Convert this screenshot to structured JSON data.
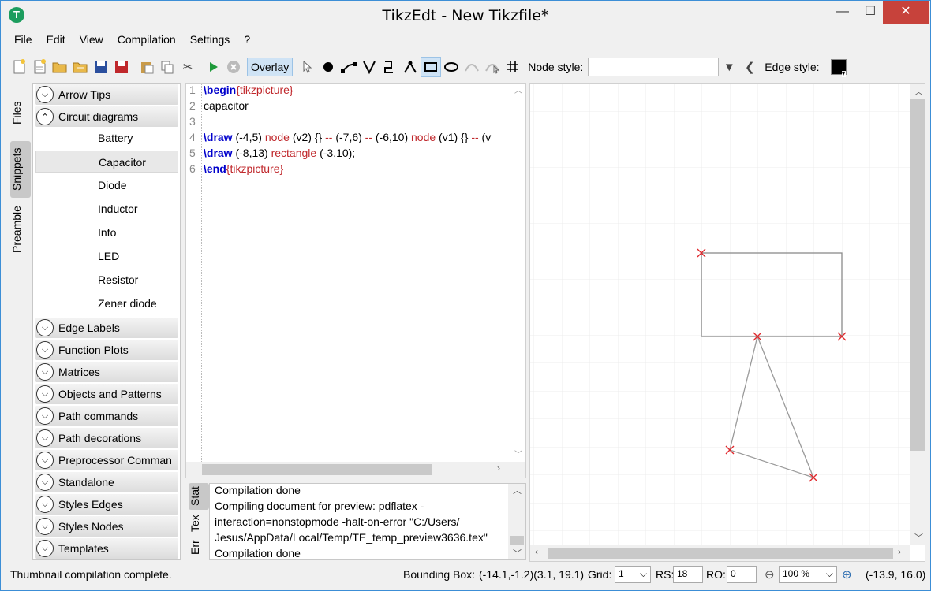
{
  "window": {
    "title": "TikzEdt - New Tikzfile*",
    "app_icon_letter": "T"
  },
  "menu": [
    "File",
    "Edit",
    "View",
    "Compilation",
    "Settings",
    "?"
  ],
  "toolbar": {
    "overlay_label": "Overlay",
    "node_style_label": "Node style:",
    "edge_style_label": "Edge style:",
    "edge_color": "#000000"
  },
  "side_tabs": [
    "Files",
    "Snippets",
    "Preamble"
  ],
  "snippets": {
    "categories_before": [
      "Arrow Tips",
      "Circuit diagrams"
    ],
    "circuit_items": [
      "Battery",
      "Capacitor",
      "Diode",
      "Inductor",
      "Info",
      "LED",
      "Resistor",
      "Zener diode"
    ],
    "categories_after": [
      "Edge Labels",
      "Function Plots",
      "Matrices",
      "Objects and Patterns",
      "Path commands",
      "Path decorations",
      "Preprocessor Comman",
      "Standalone",
      "Styles Edges",
      "Styles Nodes",
      "Templates"
    ],
    "selected": "Capacitor"
  },
  "editor": {
    "line_numbers": [
      "1",
      "2",
      "3",
      "4",
      "5",
      "6"
    ],
    "line1": {
      "kw": "\\begin",
      "arg": "{tikzpicture}"
    },
    "line2": "capacitor",
    "line4": {
      "kw": "\\draw",
      "t1": " (-4,5) ",
      "a1": "node",
      "t2": " (v2) {} ",
      "a2": "--",
      "t3": " (-7,6) ",
      "a3": "--",
      "t4": " (-6,10) ",
      "a4": "node",
      "t5": " (v1) {} ",
      "a5": "--",
      "t6": " (v"
    },
    "line5": {
      "kw": "\\draw",
      "t1": "  (-8,13) ",
      "a1": "rectangle",
      "t2": " (-3,10);"
    },
    "line6": {
      "kw": "\\end",
      "arg": "{tikzpicture}"
    }
  },
  "message_tabs": [
    "Stat",
    "Tex",
    "Err"
  ],
  "messages": [
    "Compilation done",
    "Compiling document for preview: pdflatex -",
    "interaction=nonstopmode -halt-on-error \"C:/Users/",
    "Jesus/AppData/Local/Temp/TE_temp_preview3636.tex\"",
    "Compilation done"
  ],
  "status": {
    "message": "Thumbnail compilation complete.",
    "bbox_label": "Bounding Box:",
    "bbox_value": "(-14.1,-1.2)(3.1, 19.1)",
    "grid_label": "Grid:",
    "grid_value": "1",
    "rs_label": "RS:",
    "rs_value": "18",
    "ro_label": "RO:",
    "ro_value": "0",
    "zoom_value": "100 %",
    "coords": "(-13.9, 16.0)"
  },
  "colors": {
    "accent": "#cfe3f5",
    "close_button": "#c7423b",
    "keyword": "#0000cc",
    "argument": "#c0282c",
    "marker": "#e0282c"
  }
}
